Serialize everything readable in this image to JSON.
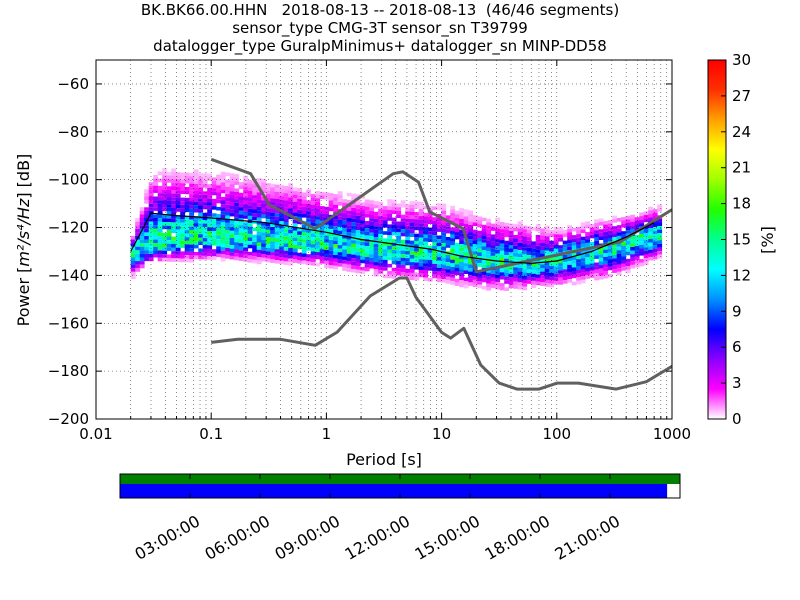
{
  "title": {
    "line1": "BK.BK66.00.HHN   2018-08-13 -- 2018-08-13  (46/46 segments)",
    "line2": "sensor_type CMG-3T sensor_sn T39799",
    "line3": "datalogger_type GuralpMinimus+ datalogger_sn MINP-DD58"
  },
  "chart_data": [
    {
      "type": "heatmap",
      "xlabel": "Period [s]",
      "ylabel_prefix": "Power [",
      "ylabel_units": "m²/s⁴/Hz",
      "ylabel_suffix": "] [dB]",
      "xscale": "log",
      "xlim": [
        0.01,
        1000
      ],
      "ylim": [
        -200,
        -50
      ],
      "x_tick_labels": [
        "0.01",
        "0.1",
        "1",
        "10",
        "100",
        "1000"
      ],
      "x_tick_values": [
        0.01,
        0.1,
        1,
        10,
        100,
        1000
      ],
      "y_tick_values": [
        -60,
        -80,
        -100,
        -120,
        -140,
        -160,
        -180,
        -200
      ],
      "y_tick_labels": [
        "−60",
        "−80",
        "−100",
        "−120",
        "−140",
        "−160",
        "−180",
        "−200"
      ],
      "colorbar": {
        "label": "[%]",
        "range": [
          0,
          30
        ],
        "tick_values": [
          0,
          3,
          6,
          9,
          12,
          15,
          18,
          21,
          24,
          27,
          30
        ],
        "tick_labels": [
          "0",
          "3",
          "6",
          "9",
          "12",
          "15",
          "18",
          "21",
          "24",
          "27",
          "30"
        ],
        "colormap": [
          "#ffffff",
          "#ff00ff",
          "#8a00ff",
          "#0000ff",
          "#0090ff",
          "#00ffff",
          "#00ff90",
          "#20ff00",
          "#a0ff00",
          "#ffff00",
          "#ffa000",
          "#ff3000",
          "#ff0000"
        ]
      },
      "grid": true,
      "line_color": "#606060",
      "mean_line_color": "#000000",
      "noise_model_high": [
        [
          0.1,
          -91.5
        ],
        [
          0.22,
          -97.5
        ],
        [
          0.32,
          -110.5
        ],
        [
          0.8,
          -120.5
        ],
        [
          3.8,
          -97.5
        ],
        [
          4.6,
          -96.7
        ],
        [
          6.3,
          -101
        ],
        [
          7.9,
          -113.5
        ],
        [
          15.4,
          -120.5
        ],
        [
          20,
          -138.5
        ],
        [
          354.8,
          -126
        ],
        [
          1000,
          -112.5
        ]
      ],
      "noise_model_low": [
        [
          0.1,
          -168
        ],
        [
          0.17,
          -166.7
        ],
        [
          0.4,
          -166.7
        ],
        [
          0.8,
          -169.2
        ],
        [
          1.24,
          -163.7
        ],
        [
          2.4,
          -148.6
        ],
        [
          4.3,
          -141.1
        ],
        [
          5,
          -141.1
        ],
        [
          6,
          -149.2
        ],
        [
          10,
          -163.8
        ],
        [
          12,
          -166.2
        ],
        [
          15.6,
          -162.1
        ],
        [
          21.9,
          -177.5
        ],
        [
          31.6,
          -185
        ],
        [
          45,
          -187.5
        ],
        [
          70,
          -187.5
        ],
        [
          101,
          -185
        ],
        [
          154,
          -185
        ],
        [
          328,
          -187.5
        ],
        [
          600,
          -184.4
        ],
        [
          1000,
          -178
        ]
      ],
      "mean_psd": [
        [
          0.02,
          -130
        ],
        [
          0.03,
          -114
        ],
        [
          0.05,
          -115
        ],
        [
          0.1,
          -116
        ],
        [
          0.3,
          -118
        ],
        [
          1,
          -122
        ],
        [
          2,
          -125
        ],
        [
          4,
          -127
        ],
        [
          8,
          -129
        ],
        [
          15,
          -132
        ],
        [
          30,
          -134
        ],
        [
          60,
          -135
        ],
        [
          100,
          -134
        ],
        [
          200,
          -130
        ],
        [
          400,
          -124
        ],
        [
          700,
          -118
        ]
      ],
      "density_band": {
        "period_range": [
          0.02,
          800
        ],
        "center": [
          [
            0.02,
            -130
          ],
          [
            0.03,
            -127
          ],
          [
            0.05,
            -125
          ],
          [
            0.1,
            -125
          ],
          [
            0.3,
            -125
          ],
          [
            1,
            -127
          ],
          [
            3,
            -129
          ],
          [
            10,
            -131
          ],
          [
            30,
            -134
          ],
          [
            60,
            -135
          ],
          [
            100,
            -133
          ],
          [
            300,
            -128
          ],
          [
            800,
            -122
          ]
        ],
        "upper": [
          [
            0.02,
            -122
          ],
          [
            0.03,
            -95
          ],
          [
            0.1,
            -96
          ],
          [
            0.3,
            -100
          ],
          [
            1,
            -104
          ],
          [
            3,
            -108
          ],
          [
            10,
            -110
          ],
          [
            30,
            -116
          ],
          [
            100,
            -120
          ],
          [
            300,
            -115
          ],
          [
            800,
            -110
          ]
        ],
        "lower": [
          [
            0.02,
            -140
          ],
          [
            0.03,
            -134
          ],
          [
            0.1,
            -133
          ],
          [
            0.3,
            -134
          ],
          [
            1,
            -136
          ],
          [
            3,
            -140
          ],
          [
            10,
            -143
          ],
          [
            30,
            -146
          ],
          [
            100,
            -144
          ],
          [
            300,
            -140
          ],
          [
            800,
            -132
          ]
        ],
        "peak_percent": 16
      }
    },
    {
      "type": "area",
      "name": "data availability",
      "x_tick_labels": [
        "03:00:00",
        "06:00:00",
        "09:00:00",
        "12:00:00",
        "15:00:00",
        "18:00:00",
        "21:00:00"
      ],
      "x_tick_hours": [
        3,
        6,
        9,
        12,
        15,
        18,
        21
      ],
      "xlim_hours": [
        0,
        24
      ],
      "covered_fraction": 0.977,
      "top_bar_color": "#008000",
      "data_bar_color": "#0000ff"
    }
  ]
}
